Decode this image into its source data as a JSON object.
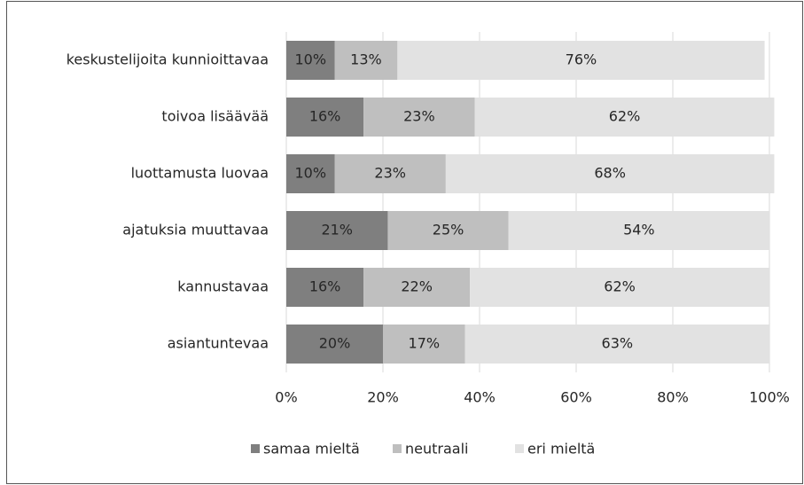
{
  "chart_data": {
    "type": "stacked-bar-horizontal",
    "categories": [
      "keskustelijoita kunnioittavaa",
      "toivoa lisäävää",
      "luottamusta luovaa",
      "ajatuksia muuttavaa",
      "kannustavaa",
      "asiantuntevaa"
    ],
    "series": [
      {
        "name": "samaa mieltä",
        "color": "#7f7f7f",
        "values": [
          10,
          16,
          10,
          21,
          16,
          20
        ],
        "value_labels": [
          "10%",
          "16%",
          "10%",
          "21%",
          "16%",
          "20%"
        ]
      },
      {
        "name": "neutraali",
        "color": "#bfbfbf",
        "values": [
          13,
          23,
          23,
          25,
          22,
          17
        ],
        "value_labels": [
          "13%",
          "23%",
          "23%",
          "25%",
          "22%",
          "17%"
        ]
      },
      {
        "name": "eri mieltä",
        "color": "#e2e2e2",
        "values": [
          76,
          62,
          68,
          54,
          62,
          63
        ],
        "value_labels": [
          "76%",
          "62%",
          "68%",
          "54%",
          "62%",
          "63%"
        ]
      }
    ],
    "xlim": [
      0,
      100
    ],
    "xticks": [
      {
        "value": 0,
        "label": "0%"
      },
      {
        "value": 20,
        "label": "20%"
      },
      {
        "value": 40,
        "label": "40%"
      },
      {
        "value": 60,
        "label": "60%"
      },
      {
        "value": 80,
        "label": "80%"
      },
      {
        "value": 100,
        "label": "100%"
      }
    ],
    "grid": true,
    "legend": "bottom"
  }
}
